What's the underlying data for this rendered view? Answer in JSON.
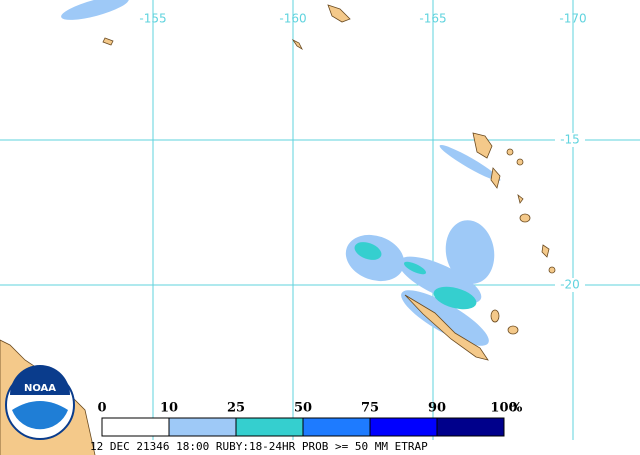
{
  "map": {
    "longitudes": [
      -155,
      -160,
      -165,
      -170
    ],
    "latitudes": [
      -15,
      -20
    ],
    "legend": {
      "ticks": [
        0,
        10,
        25,
        50,
        75,
        90,
        100
      ],
      "unit": "%",
      "colors": [
        "#ffffff",
        "#9ec9f7",
        "#35cfcf",
        "#1e7bff",
        "#0000ff",
        "#00008b"
      ]
    },
    "logo": "NOAA",
    "footer": "12 DEC 21346 18:00 RUBY:18-24HR PROB >= 50 MM ETRAP"
  }
}
